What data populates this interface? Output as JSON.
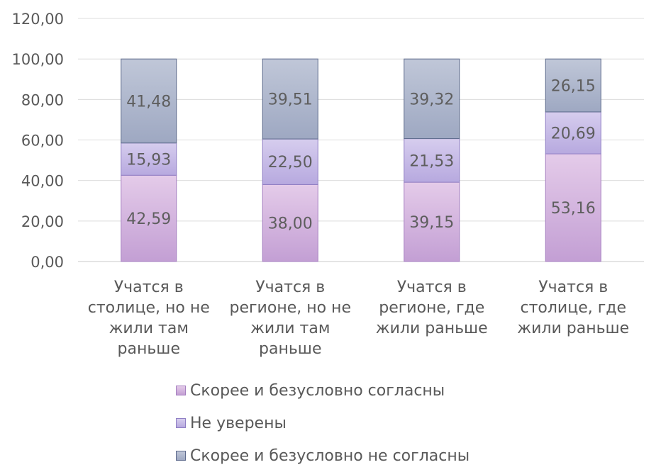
{
  "chart_data": {
    "type": "bar",
    "stacked": true,
    "categories": [
      [
        "Учатся в",
        "столице, но не",
        "жили там",
        "раньше"
      ],
      [
        "Учатся в",
        "регионе, но не",
        "жили там",
        "раньше"
      ],
      [
        "Учатся в",
        "регионе, где",
        "жили раньше"
      ],
      [
        "Учатся в",
        "столице, где",
        "жили раньше"
      ]
    ],
    "series": [
      {
        "name": "Скорее и безусловно согласны",
        "values": [
          42.59,
          38.0,
          39.15,
          53.16
        ],
        "labels": [
          "42,59",
          "38,00",
          "39,15",
          "53,16"
        ],
        "color_top": "#e4cbe9",
        "color_bottom": "#c39fd4",
        "stroke": "#a57fc0"
      },
      {
        "name": "Не уверены",
        "values": [
          15.93,
          22.5,
          21.53,
          20.69
        ],
        "labels": [
          "15,93",
          "22,50",
          "21,53",
          "20,69"
        ],
        "color_top": "#d6cdee",
        "color_bottom": "#b7a9df",
        "stroke": "#8f7fc4"
      },
      {
        "name": "Скорее и безусловно не согласны",
        "values": [
          41.48,
          39.51,
          39.32,
          26.15
        ],
        "labels": [
          "41,48",
          "39,51",
          "39,32",
          "26,15"
        ],
        "color_top": "#c0c7d8",
        "color_bottom": "#9ea8c2",
        "stroke": "#5d6a8c"
      }
    ],
    "ylim": [
      0,
      120
    ],
    "yticks": [
      "0,00",
      "20,00",
      "40,00",
      "60,00",
      "80,00",
      "100,00",
      "120,00"
    ],
    "grid": true,
    "legend_position": "bottom"
  }
}
